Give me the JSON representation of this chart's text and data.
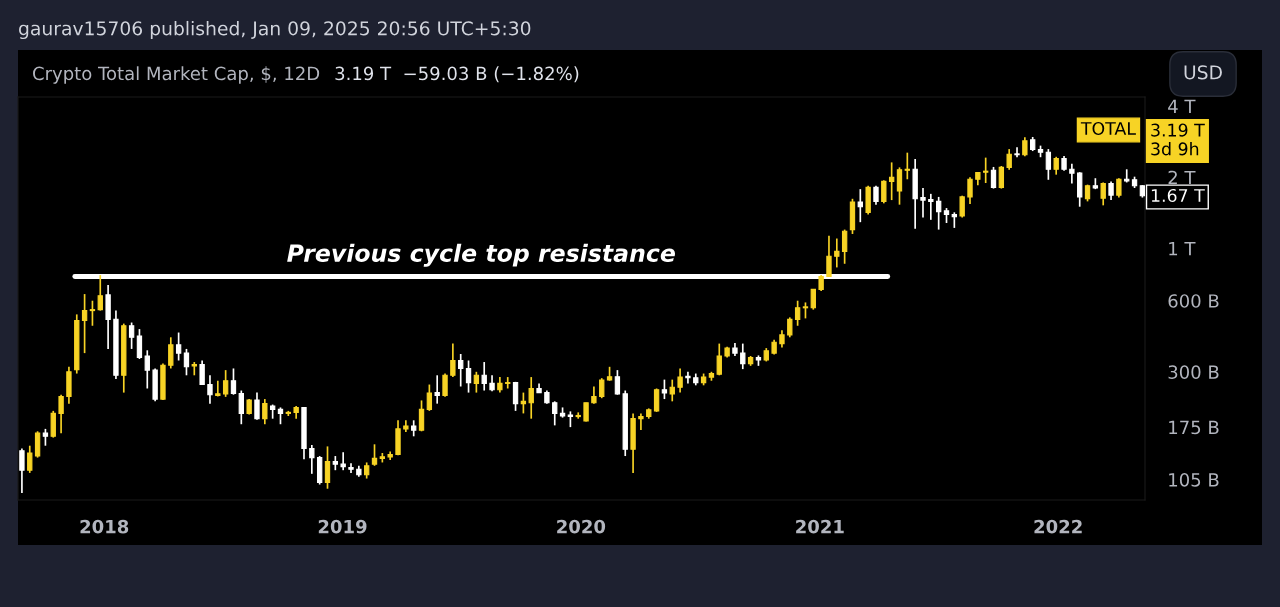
{
  "chart_data": {
    "type": "candlestick",
    "title": "Crypto Total Market Cap, $, 12D",
    "subtitle": "3.19 T  −59.03 B (−1.82%)",
    "annotations": [
      "gaurav15706 published, Jan 09, 2025 20:56 UTC+5:30",
      "USD",
      "TOTAL",
      "3.19 T\n3d 9h",
      "1.67 T"
    ],
    "x": [
      "2017-08-28",
      "2017-09-09",
      "2017-09-21",
      "2017-10-03",
      "2017-10-15",
      "2017-10-27",
      "2017-11-08",
      "2017-11-20",
      "2017-12-02",
      "2017-12-14",
      "2017-12-26",
      "2018-01-07",
      "2018-01-19",
      "2018-01-31",
      "2018-02-12",
      "2018-02-24",
      "2018-03-08",
      "2018-03-20",
      "2018-04-01",
      "2018-04-13",
      "2018-04-25",
      "2018-05-07",
      "2018-05-19",
      "2018-05-31",
      "2018-06-12",
      "2018-06-24",
      "2018-07-06",
      "2018-07-18",
      "2018-07-30",
      "2018-08-11",
      "2018-08-23",
      "2018-09-04",
      "2018-09-16",
      "2018-09-28",
      "2018-10-10",
      "2018-10-22",
      "2018-11-03",
      "2018-11-15",
      "2018-11-27",
      "2018-12-09",
      "2018-12-21",
      "2019-01-02",
      "2019-01-14",
      "2019-01-26",
      "2019-02-07",
      "2019-02-19",
      "2019-03-03",
      "2019-03-15",
      "2019-03-27",
      "2019-04-08",
      "2019-04-20",
      "2019-05-02",
      "2019-05-14",
      "2019-05-26",
      "2019-06-07",
      "2019-06-19",
      "2019-07-01",
      "2019-07-13",
      "2019-07-25",
      "2019-08-06",
      "2019-08-18",
      "2019-08-30",
      "2019-09-11",
      "2019-09-23",
      "2019-10-05",
      "2019-10-17",
      "2019-10-29",
      "2019-11-10",
      "2019-11-22",
      "2019-12-04",
      "2019-12-16",
      "2019-12-28",
      "2020-01-09",
      "2020-01-21",
      "2020-02-02",
      "2020-02-14",
      "2020-02-26",
      "2020-03-09",
      "2020-03-21",
      "2020-04-02",
      "2020-04-14",
      "2020-04-26",
      "2020-05-08",
      "2020-05-20",
      "2020-06-01",
      "2020-06-13",
      "2020-06-25",
      "2020-07-07",
      "2020-07-19",
      "2020-07-31",
      "2020-08-12",
      "2020-08-24",
      "2020-09-05",
      "2020-09-17",
      "2020-09-29",
      "2020-10-11",
      "2020-10-23",
      "2020-11-04",
      "2020-11-16",
      "2020-11-28",
      "2020-12-10",
      "2020-12-22",
      "2021-01-03",
      "2021-01-15",
      "2021-01-27",
      "2021-02-08",
      "2021-02-20",
      "2021-03-04",
      "2021-03-16",
      "2021-03-28",
      "2021-04-09",
      "2021-04-21",
      "2021-05-03",
      "2021-05-15",
      "2021-05-27",
      "2021-06-08",
      "2021-06-20",
      "2021-07-02",
      "2021-07-14",
      "2021-07-26",
      "2021-08-07",
      "2021-08-19",
      "2021-08-31",
      "2021-09-12",
      "2021-09-24",
      "2021-10-06",
      "2021-10-18",
      "2021-10-30",
      "2021-11-11",
      "2021-11-23",
      "2021-12-05",
      "2021-12-17",
      "2021-12-29",
      "2022-01-10",
      "2022-01-22",
      "2022-02-03",
      "2022-02-15",
      "2022-02-27",
      "2022-03-11",
      "2022-03-23",
      "2022-04-04",
      "2022-04-16",
      "2022-04-28",
      "2022-05-10"
    ],
    "ohlc": [
      [
        139000000000.0,
        142000000000.0,
        92000000000.0,
        115000000000.0
      ],
      [
        115000000000.0,
        146000000000.0,
        112000000000.0,
        136000000000.0
      ],
      [
        132000000000.0,
        168000000000.0,
        130000000000.0,
        165000000000.0
      ],
      [
        165000000000.0,
        172000000000.0,
        146000000000.0,
        160000000000.0
      ],
      [
        160000000000.0,
        205000000000.0,
        158000000000.0,
        200000000000.0
      ],
      [
        200000000000.0,
        240000000000.0,
        165000000000.0,
        236000000000.0
      ],
      [
        236000000000.0,
        315000000000.0,
        220000000000.0,
        300000000000.0
      ],
      [
        306000000000.0,
        525000000000.0,
        295000000000.0,
        495000000000.0
      ],
      [
        495000000000.0,
        640000000000.0,
        360000000000.0,
        545000000000.0
      ],
      [
        545000000000.0,
        600000000000.0,
        470000000000.0,
        550000000000.0
      ],
      [
        550000000000.0,
        770000000000.0,
        545000000000.0,
        630000000000.0
      ],
      [
        635000000000.0,
        700000000000.0,
        375000000000.0,
        500000000000.0
      ],
      [
        500000000000.0,
        545000000000.0,
        280000000000.0,
        290000000000.0
      ],
      [
        290000000000.0,
        480000000000.0,
        245000000000.0,
        470000000000.0
      ],
      [
        470000000000.0,
        485000000000.0,
        375000000000.0,
        420000000000.0
      ],
      [
        425000000000.0,
        455000000000.0,
        340000000000.0,
        345000000000.0
      ],
      [
        350000000000.0,
        370000000000.0,
        255000000000.0,
        305000000000.0
      ],
      [
        305000000000.0,
        310000000000.0,
        225000000000.0,
        230000000000.0
      ],
      [
        230000000000.0,
        325000000000.0,
        228000000000.0,
        320000000000.0
      ],
      [
        320000000000.0,
        420000000000.0,
        310000000000.0,
        390000000000.0
      ],
      [
        390000000000.0,
        440000000000.0,
        335000000000.0,
        360000000000.0
      ],
      [
        360000000000.0,
        375000000000.0,
        290000000000.0,
        315000000000.0
      ],
      [
        318000000000.0,
        330000000000.0,
        290000000000.0,
        322000000000.0
      ],
      [
        322000000000.0,
        335000000000.0,
        265000000000.0,
        265000000000.0
      ],
      [
        265000000000.0,
        290000000000.0,
        220000000000.0,
        240000000000.0
      ],
      [
        238000000000.0,
        275000000000.0,
        236000000000.0,
        242000000000.0
      ],
      [
        242000000000.0,
        305000000000.0,
        235000000000.0,
        275000000000.0
      ],
      [
        275000000000.0,
        310000000000.0,
        240000000000.0,
        243000000000.0
      ],
      [
        243000000000.0,
        250000000000.0,
        180000000000.0,
        200000000000.0
      ],
      [
        200000000000.0,
        230000000000.0,
        198000000000.0,
        228000000000.0
      ],
      [
        228000000000.0,
        245000000000.0,
        188000000000.0,
        190000000000.0
      ],
      [
        190000000000.0,
        230000000000.0,
        180000000000.0,
        220000000000.0
      ],
      [
        215000000000.0,
        218000000000.0,
        190000000000.0,
        208000000000.0
      ],
      [
        208000000000.0,
        212000000000.0,
        180000000000.0,
        200000000000.0
      ],
      [
        200000000000.0,
        205000000000.0,
        195000000000.0,
        202000000000.0
      ],
      [
        202000000000.0,
        215000000000.0,
        190000000000.0,
        212000000000.0
      ],
      [
        212000000000.0,
        213000000000.0,
        128000000000.0,
        142000000000.0
      ],
      [
        142000000000.0,
        147000000000.0,
        111000000000.0,
        130000000000.0
      ],
      [
        130000000000.0,
        132000000000.0,
        100000000000.0,
        102000000000.0
      ],
      [
        102000000000.0,
        145000000000.0,
        96000000000.0,
        125000000000.0
      ],
      [
        125000000000.0,
        132000000000.0,
        115000000000.0,
        122000000000.0
      ],
      [
        122000000000.0,
        137000000000.0,
        115000000000.0,
        119000000000.0
      ],
      [
        118000000000.0,
        123000000000.0,
        112000000000.0,
        116000000000.0
      ],
      [
        116000000000.0,
        120000000000.0,
        108000000000.0,
        110000000000.0
      ],
      [
        110000000000.0,
        124000000000.0,
        106000000000.0,
        120000000000.0
      ],
      [
        122000000000.0,
        148000000000.0,
        120000000000.0,
        129000000000.0
      ],
      [
        129000000000.0,
        136000000000.0,
        124000000000.0,
        131000000000.0
      ],
      [
        131000000000.0,
        138000000000.0,
        127000000000.0,
        134000000000.0
      ],
      [
        134000000000.0,
        187000000000.0,
        133000000000.0,
        172000000000.0
      ],
      [
        172000000000.0,
        187000000000.0,
        167000000000.0,
        177000000000.0
      ],
      [
        177000000000.0,
        187000000000.0,
        160000000000.0,
        170000000000.0
      ],
      [
        170000000000.0,
        227000000000.0,
        168000000000.0,
        208000000000.0
      ],
      [
        208000000000.0,
        265000000000.0,
        205000000000.0,
        244000000000.0
      ],
      [
        245000000000.0,
        290000000000.0,
        220000000000.0,
        238000000000.0
      ],
      [
        238000000000.0,
        295000000000.0,
        235000000000.0,
        290000000000.0
      ],
      [
        290000000000.0,
        395000000000.0,
        285000000000.0,
        335000000000.0
      ],
      [
        335000000000.0,
        357000000000.0,
        260000000000.0,
        310000000000.0
      ],
      [
        310000000000.0,
        335000000000.0,
        245000000000.0,
        270000000000.0
      ],
      [
        268000000000.0,
        300000000000.0,
        245000000000.0,
        290000000000.0
      ],
      [
        290000000000.0,
        330000000000.0,
        250000000000.0,
        268000000000.0
      ],
      [
        268000000000.0,
        290000000000.0,
        248000000000.0,
        252000000000.0
      ],
      [
        252000000000.0,
        285000000000.0,
        245000000000.0,
        268000000000.0
      ],
      [
        268000000000.0,
        285000000000.0,
        255000000000.0,
        270000000000.0
      ],
      [
        270000000000.0,
        272000000000.0,
        205000000000.0,
        220000000000.0
      ],
      [
        220000000000.0,
        245000000000.0,
        200000000000.0,
        225000000000.0
      ],
      [
        222000000000.0,
        285000000000.0,
        190000000000.0,
        255000000000.0
      ],
      [
        255000000000.0,
        268000000000.0,
        245000000000.0,
        245000000000.0
      ],
      [
        245000000000.0,
        250000000000.0,
        220000000000.0,
        222000000000.0
      ],
      [
        222000000000.0,
        225000000000.0,
        178000000000.0,
        200000000000.0
      ],
      [
        200000000000.0,
        212000000000.0,
        192000000000.0,
        195000000000.0
      ],
      [
        197000000000.0,
        204000000000.0,
        175000000000.0,
        194000000000.0
      ],
      [
        194000000000.0,
        202000000000.0,
        190000000000.0,
        196000000000.0
      ],
      [
        186000000000.0,
        222000000000.0,
        185000000000.0,
        222000000000.0
      ],
      [
        222000000000.0,
        260000000000.0,
        220000000000.0,
        236000000000.0
      ],
      [
        236000000000.0,
        282000000000.0,
        232000000000.0,
        277000000000.0
      ],
      [
        277000000000.0,
        315000000000.0,
        275000000000.0,
        286000000000.0
      ],
      [
        286000000000.0,
        305000000000.0,
        240000000000.0,
        242000000000.0
      ],
      [
        242000000000.0,
        250000000000.0,
        132000000000.0,
        141000000000.0
      ],
      [
        141000000000.0,
        200000000000.0,
        112000000000.0,
        190000000000.0
      ],
      [
        190000000000.0,
        200000000000.0,
        170000000000.0,
        194000000000.0
      ],
      [
        194000000000.0,
        210000000000.0,
        190000000000.0,
        207000000000.0
      ],
      [
        205000000000.0,
        255000000000.0,
        203000000000.0,
        252000000000.0
      ],
      [
        252000000000.0,
        278000000000.0,
        230000000000.0,
        244000000000.0
      ],
      [
        242000000000.0,
        278000000000.0,
        225000000000.0,
        258000000000.0
      ],
      [
        258000000000.0,
        310000000000.0,
        245000000000.0,
        285000000000.0
      ],
      [
        287000000000.0,
        300000000000.0,
        268000000000.0,
        283000000000.0
      ],
      [
        283000000000.0,
        295000000000.0,
        263000000000.0,
        270000000000.0
      ],
      [
        270000000000.0,
        295000000000.0,
        263000000000.0,
        285000000000.0
      ],
      [
        285000000000.0,
        300000000000.0,
        275000000000.0,
        295000000000.0
      ],
      [
        293000000000.0,
        395000000000.0,
        290000000000.0,
        350000000000.0
      ],
      [
        350000000000.0,
        383000000000.0,
        345000000000.0,
        378000000000.0
      ],
      [
        378000000000.0,
        397000000000.0,
        350000000000.0,
        360000000000.0
      ],
      [
        360000000000.0,
        395000000000.0,
        308000000000.0,
        325000000000.0
      ],
      [
        325000000000.0,
        350000000000.0,
        318000000000.0,
        345000000000.0
      ],
      [
        345000000000.0,
        352000000000.0,
        318000000000.0,
        337000000000.0
      ],
      [
        337000000000.0,
        378000000000.0,
        332000000000.0,
        368000000000.0
      ],
      [
        360000000000.0,
        410000000000.0,
        355000000000.0,
        400000000000.0
      ],
      [
        395000000000.0,
        450000000000.0,
        380000000000.0,
        430000000000.0
      ],
      [
        430000000000.0,
        510000000000.0,
        420000000000.0,
        500000000000.0
      ],
      [
        500000000000.0,
        600000000000.0,
        470000000000.0,
        560000000000.0
      ],
      [
        560000000000.0,
        590000000000.0,
        505000000000.0,
        565000000000.0
      ],
      [
        560000000000.0,
        670000000000.0,
        550000000000.0,
        670000000000.0
      ],
      [
        670000000000.0,
        770000000000.0,
        660000000000.0,
        760000000000.0
      ],
      [
        760000000000.0,
        1130000000000.0,
        760000000000.0,
        925000000000.0
      ],
      [
        925000000000.0,
        1100000000000.0,
        830000000000.0,
        970000000000.0
      ],
      [
        970000000000.0,
        1200000000000.0,
        860000000000.0,
        1180000000000.0
      ],
      [
        1200000000000.0,
        1620000000000.0,
        1150000000000.0,
        1570000000000.0
      ],
      [
        1570000000000.0,
        1780000000000.0,
        1290000000000.0,
        1500000000000.0
      ],
      [
        1420000000000.0,
        1840000000000.0,
        1390000000000.0,
        1810000000000.0
      ],
      [
        1810000000000.0,
        1840000000000.0,
        1530000000000.0,
        1580000000000.0
      ],
      [
        1580000000000.0,
        1940000000000.0,
        1550000000000.0,
        1920000000000.0
      ],
      [
        1920000000000.0,
        2310000000000.0,
        1600000000000.0,
        2000000000000.0
      ],
      [
        1750000000000.0,
        2200000000000.0,
        1530000000000.0,
        2150000000000.0
      ],
      [
        2140000000000.0,
        2540000000000.0,
        1960000000000.0,
        2160000000000.0
      ],
      [
        2160000000000.0,
        2390000000000.0,
        1210000000000.0,
        1620000000000.0
      ],
      [
        1640000000000.0,
        1800000000000.0,
        1350000000000.0,
        1600000000000.0
      ],
      [
        1610000000000.0,
        1700000000000.0,
        1320000000000.0,
        1580000000000.0
      ],
      [
        1580000000000.0,
        1650000000000.0,
        1200000000000.0,
        1430000000000.0
      ],
      [
        1440000000000.0,
        1480000000000.0,
        1280000000000.0,
        1390000000000.0
      ],
      [
        1390000000000.0,
        1420000000000.0,
        1220000000000.0,
        1360000000000.0
      ],
      [
        1370000000000.0,
        1670000000000.0,
        1350000000000.0,
        1650000000000.0
      ],
      [
        1650000000000.0,
        2000000000000.0,
        1540000000000.0,
        1960000000000.0
      ],
      [
        1960000000000.0,
        2100000000000.0,
        1850000000000.0,
        2090000000000.0
      ],
      [
        2100000000000.0,
        2420000000000.0,
        1890000000000.0,
        2120000000000.0
      ],
      [
        2140000000000.0,
        2210000000000.0,
        1790000000000.0,
        1810000000000.0
      ],
      [
        1810000000000.0,
        2230000000000.0,
        1790000000000.0,
        2200000000000.0
      ],
      [
        2200000000000.0,
        2630000000000.0,
        2150000000000.0,
        2500000000000.0
      ],
      [
        2510000000000.0,
        2680000000000.0,
        2430000000000.0,
        2490000000000.0
      ],
      [
        2490000000000.0,
        2950000000000.0,
        2450000000000.0,
        2850000000000.0
      ],
      [
        2880000000000.0,
        2960000000000.0,
        2580000000000.0,
        2620000000000.0
      ],
      [
        2620000000000.0,
        2720000000000.0,
        2430000000000.0,
        2550000000000.0
      ],
      [
        2550000000000.0,
        2630000000000.0,
        1950000000000.0,
        2160000000000.0
      ],
      [
        2160000000000.0,
        2440000000000.0,
        2050000000000.0,
        2400000000000.0
      ],
      [
        2400000000000.0,
        2460000000000.0,
        2130000000000.0,
        2160000000000.0
      ],
      [
        2160000000000.0,
        2280000000000.0,
        1880000000000.0,
        2080000000000.0
      ],
      [
        2080000000000.0,
        2100000000000.0,
        1500000000000.0,
        1650000000000.0
      ],
      [
        1620000000000.0,
        1860000000000.0,
        1580000000000.0,
        1840000000000.0
      ],
      [
        1840000000000.0,
        1980000000000.0,
        1780000000000.0,
        1800000000000.0
      ],
      [
        1630000000000.0,
        1900000000000.0,
        1520000000000.0,
        1880000000000.0
      ],
      [
        1880000000000.0,
        1920000000000.0,
        1600000000000.0,
        1680000000000.0
      ],
      [
        1680000000000.0,
        1980000000000.0,
        1640000000000.0,
        1960000000000.0
      ],
      [
        1960000000000.0,
        2160000000000.0,
        1900000000000.0,
        1930000000000.0
      ],
      [
        1950000000000.0,
        2010000000000.0,
        1800000000000.0,
        1840000000000.0
      ],
      [
        1840000000000.0,
        1850000000000.0,
        1640000000000.0,
        1670000000000.0
      ]
    ],
    "colors": [
      "#ffffff",
      "#f7d325",
      "#f7d325",
      "#ffffff",
      "#f7d325",
      "#f7d325",
      "#f7d325",
      "#f7d325",
      "#f7d325",
      "#f7d325",
      "#f7d325",
      "#ffffff",
      "#ffffff",
      "#f7d325",
      "#ffffff",
      "#ffffff",
      "#ffffff",
      "#ffffff",
      "#f7d325",
      "#f7d325",
      "#ffffff",
      "#ffffff",
      "#f7d325",
      "#ffffff",
      "#ffffff",
      "#f7d325",
      "#f7d325",
      "#ffffff",
      "#ffffff",
      "#f7d325",
      "#ffffff",
      "#f7d325",
      "#ffffff",
      "#ffffff",
      "#f7d325",
      "#f7d325",
      "#ffffff",
      "#ffffff",
      "#ffffff",
      "#f7d325",
      "#ffffff",
      "#ffffff",
      "#ffffff",
      "#ffffff",
      "#f7d325",
      "#f7d325",
      "#f7d325",
      "#f7d325",
      "#f7d325",
      "#f7d325",
      "#ffffff",
      "#f7d325",
      "#f7d325",
      "#ffffff",
      "#f7d325",
      "#f7d325",
      "#ffffff",
      "#ffffff",
      "#f7d325",
      "#ffffff",
      "#ffffff",
      "#f7d325",
      "#f7d325",
      "#ffffff",
      "#f7d325",
      "#f7d325",
      "#ffffff",
      "#ffffff",
      "#ffffff",
      "#ffffff",
      "#ffffff",
      "#f7d325",
      "#f7d325",
      "#f7d325",
      "#f7d325",
      "#f7d325",
      "#ffffff",
      "#ffffff",
      "#f7d325",
      "#f7d325",
      "#f7d325",
      "#f7d325",
      "#ffffff",
      "#f7d325",
      "#f7d325",
      "#ffffff",
      "#ffffff",
      "#f7d325",
      "#f7d325",
      "#f7d325",
      "#f7d325",
      "#ffffff",
      "#ffffff",
      "#f7d325",
      "#ffffff",
      "#f7d325",
      "#f7d325",
      "#f7d325",
      "#f7d325",
      "#f7d325",
      "#f7d325",
      "#f7d325",
      "#f7d325",
      "#f7d325",
      "#f7d325",
      "#f7d325",
      "#f7d325",
      "#ffffff",
      "#f7d325",
      "#ffffff",
      "#f7d325",
      "#f7d325",
      "#f7d325",
      "#f7d325",
      "#ffffff",
      "#ffffff",
      "#ffffff",
      "#ffffff",
      "#ffffff",
      "#ffffff",
      "#f7d325",
      "#f7d325",
      "#f7d325",
      "#f7d325",
      "#ffffff",
      "#f7d325",
      "#f7d325",
      "#ffffff",
      "#f7d325",
      "#ffffff",
      "#ffffff",
      "#ffffff",
      "#f7d325",
      "#ffffff",
      "#ffffff",
      "#ffffff",
      "#f7d325",
      "#ffffff",
      "#f7d325",
      "#ffffff",
      "#f7d325",
      "#ffffff",
      "#ffffff",
      "#ffffff"
    ],
    "series": [
      {
        "type": "line",
        "name": "Previous cycle top resistance",
        "color": "#ffffff",
        "x": [
          "2017-11-17",
          "2021-04-15"
        ],
        "values": [
          760000000000.0,
          760000000000.0
        ]
      }
    ],
    "log": true,
    "ylim": [
      86000000000.0,
      4370000000000.0
    ],
    "yticks": [
      {
        "value": 105000000000.0,
        "label": "105 B"
      },
      {
        "value": 175000000000.0,
        "label": "175 B"
      },
      {
        "value": 300000000000.0,
        "label": "300 B"
      },
      {
        "value": 600000000000.0,
        "label": "600 B"
      },
      {
        "value": 1000000000000.0,
        "label": "1 T"
      },
      {
        "value": 2000000000000.0,
        "label": "2 T"
      },
      {
        "value": 4000000000000.0,
        "label": "4 T"
      }
    ],
    "xlim": [
      "2017-08-22",
      "2022-05-14"
    ],
    "xticks": [
      {
        "value": "2018",
        "label": "2018"
      },
      {
        "value": "2019",
        "label": "2019"
      },
      {
        "value": "2020",
        "label": "2020"
      },
      {
        "value": "2021",
        "label": "2021"
      },
      {
        "value": "2022",
        "label": "2022"
      }
    ]
  }
}
